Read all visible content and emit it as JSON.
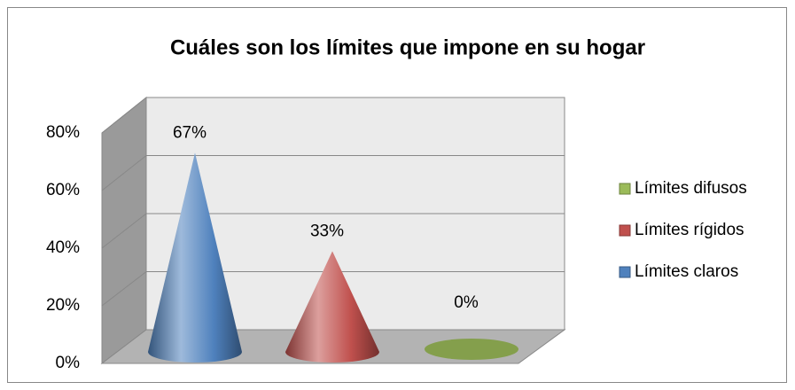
{
  "chart_data": {
    "type": "cone3d",
    "title": "Cuáles son los límites que impone en su hogar",
    "categories": [
      null
    ],
    "series": [
      {
        "name": "Límites claros",
        "color": "#4f81bd",
        "values": [
          67
        ],
        "value_labels": [
          "67%"
        ]
      },
      {
        "name": "Límites rígidos",
        "color": "#c0504d",
        "values": [
          33
        ],
        "value_labels": [
          "33%"
        ]
      },
      {
        "name": "Límites difusos",
        "color": "#9bbb59",
        "values": [
          0
        ],
        "value_labels": [
          "0%"
        ]
      }
    ],
    "ylim": [
      0,
      80
    ],
    "yticks": [
      {
        "value": 0,
        "label": "0%"
      },
      {
        "value": 20,
        "label": "20%"
      },
      {
        "value": 40,
        "label": "40%"
      },
      {
        "value": 60,
        "label": "60%"
      },
      {
        "value": 80,
        "label": "80%"
      }
    ],
    "grid": true,
    "legend": "right"
  }
}
